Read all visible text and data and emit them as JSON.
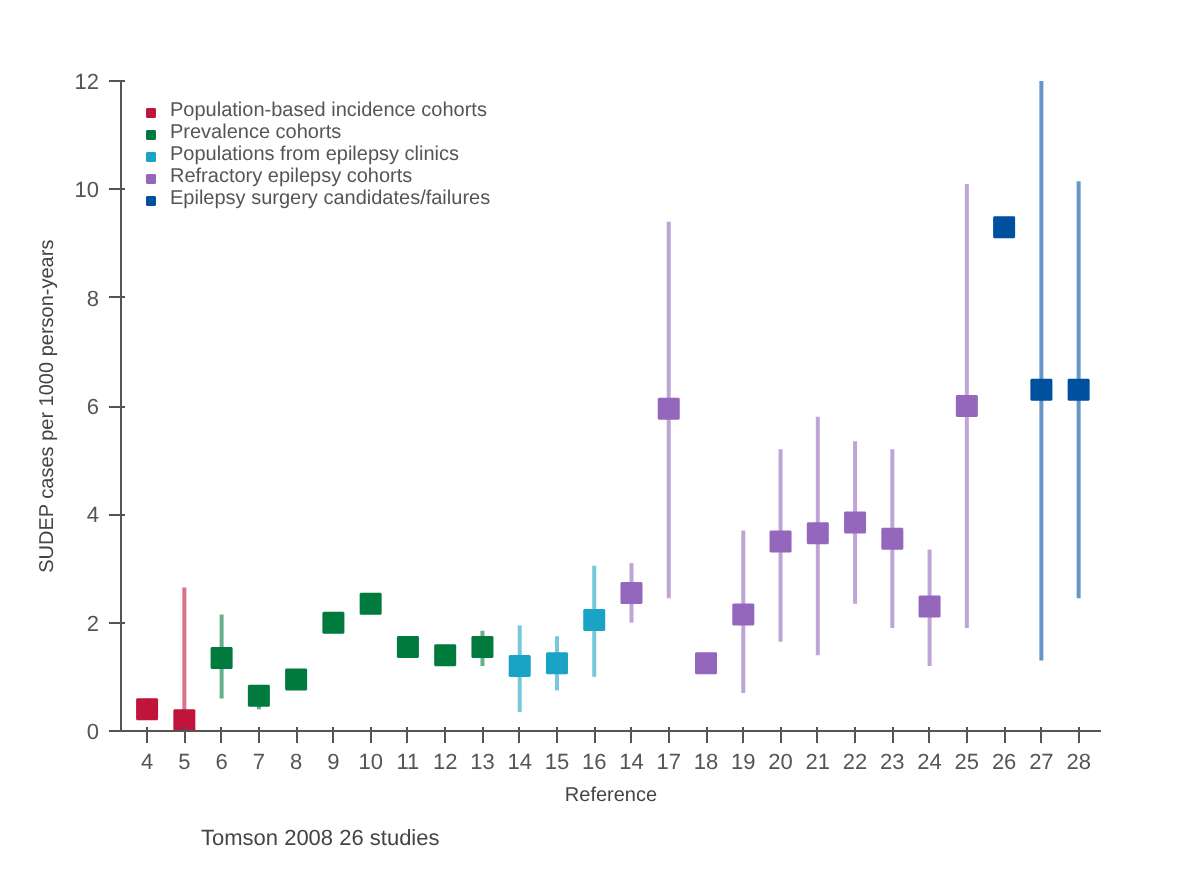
{
  "chart_data": {
    "type": "scatter",
    "xlabel": "Reference",
    "ylabel": "SUDEP cases per 1000 person-years",
    "categories": [
      "4",
      "5",
      "6",
      "7",
      "8",
      "9",
      "10",
      "11",
      "12",
      "13",
      "14",
      "15",
      "16",
      "14",
      "17",
      "18",
      "19",
      "20",
      "21",
      "22",
      "23",
      "24",
      "25",
      "26",
      "27",
      "28"
    ],
    "series": [
      {
        "name": "Population-based incidence cohorts",
        "color": "#c0143c",
        "values": [
          0.4,
          0.2,
          null,
          null,
          null,
          null,
          null,
          null,
          null,
          null,
          null,
          null,
          null,
          null,
          null,
          null,
          null,
          null,
          null,
          null,
          null,
          null,
          null,
          null,
          null,
          null
        ],
        "errors": [
          [
            0.3,
            0.6
          ],
          [
            0,
            2.65
          ],
          null,
          null,
          null,
          null,
          null,
          null,
          null,
          null,
          null,
          null,
          null,
          null,
          null,
          null,
          null,
          null,
          null,
          null,
          null,
          null,
          null,
          null,
          null,
          null
        ]
      },
      {
        "name": "Prevalence cohorts",
        "color": "#007a3d",
        "values": [
          null,
          null,
          1.35,
          0.65,
          0.95,
          2.0,
          2.35,
          1.55,
          1.4,
          1.55,
          null,
          null,
          null,
          null,
          null,
          null,
          null,
          null,
          null,
          null,
          null,
          null,
          null,
          null,
          null,
          null
        ],
        "errors": [
          null,
          null,
          [
            0.6,
            2.15
          ],
          [
            0.4,
            0.85
          ],
          null,
          null,
          null,
          null,
          null,
          [
            1.2,
            1.85
          ],
          null,
          null,
          null,
          null,
          null,
          null,
          null,
          null,
          null,
          null,
          null,
          null,
          null,
          null,
          null,
          null
        ]
      },
      {
        "name": "Populations from epilepsy clinics",
        "color": "#1ba3c6",
        "values": [
          null,
          null,
          null,
          null,
          null,
          null,
          null,
          null,
          null,
          null,
          1.2,
          1.25,
          2.05,
          null,
          null,
          null,
          null,
          null,
          null,
          null,
          null,
          null,
          null,
          null,
          null,
          null
        ],
        "errors": [
          null,
          null,
          null,
          null,
          null,
          null,
          null,
          null,
          null,
          null,
          [
            0.35,
            1.95
          ],
          [
            0.75,
            1.75
          ],
          [
            1.0,
            3.05
          ],
          null,
          null,
          null,
          null,
          null,
          null,
          null,
          null,
          null,
          null,
          null,
          null,
          null
        ]
      },
      {
        "name": "Refractory epilepsy cohorts",
        "color": "#9467bd",
        "values": [
          null,
          null,
          null,
          null,
          null,
          null,
          null,
          null,
          null,
          null,
          null,
          null,
          null,
          2.55,
          5.95,
          1.25,
          2.15,
          3.5,
          3.65,
          3.85,
          3.55,
          2.3,
          6.0,
          null,
          null,
          null
        ],
        "errors": [
          null,
          null,
          null,
          null,
          null,
          null,
          null,
          null,
          null,
          null,
          null,
          null,
          null,
          [
            2.0,
            3.1
          ],
          [
            2.45,
            9.4
          ],
          null,
          [
            0.7,
            3.7
          ],
          [
            1.65,
            5.2
          ],
          [
            1.4,
            5.8
          ],
          [
            2.35,
            5.35
          ],
          [
            1.9,
            5.2
          ],
          [
            1.2,
            3.35
          ],
          [
            1.9,
            10.1
          ],
          null,
          null,
          null
        ]
      },
      {
        "name": "Epilepsy surgery candidates/failures",
        "color": "#0050a0",
        "values": [
          null,
          null,
          null,
          null,
          null,
          null,
          null,
          null,
          null,
          null,
          null,
          null,
          null,
          null,
          null,
          null,
          null,
          null,
          null,
          null,
          null,
          null,
          null,
          9.3,
          6.3,
          6.3
        ],
        "errors": [
          null,
          null,
          null,
          null,
          null,
          null,
          null,
          null,
          null,
          null,
          null,
          null,
          null,
          null,
          null,
          null,
          null,
          null,
          null,
          null,
          null,
          null,
          null,
          null,
          [
            1.3,
            12.1
          ],
          [
            2.45,
            10.15
          ]
        ]
      }
    ],
    "ylim": [
      0,
      12
    ],
    "yticks": [
      0,
      2,
      4,
      6,
      8,
      10,
      12
    ],
    "grid": false,
    "legend": "top left",
    "marker": "square",
    "annotations": [
      "Tomson 2008 26 studies"
    ]
  }
}
